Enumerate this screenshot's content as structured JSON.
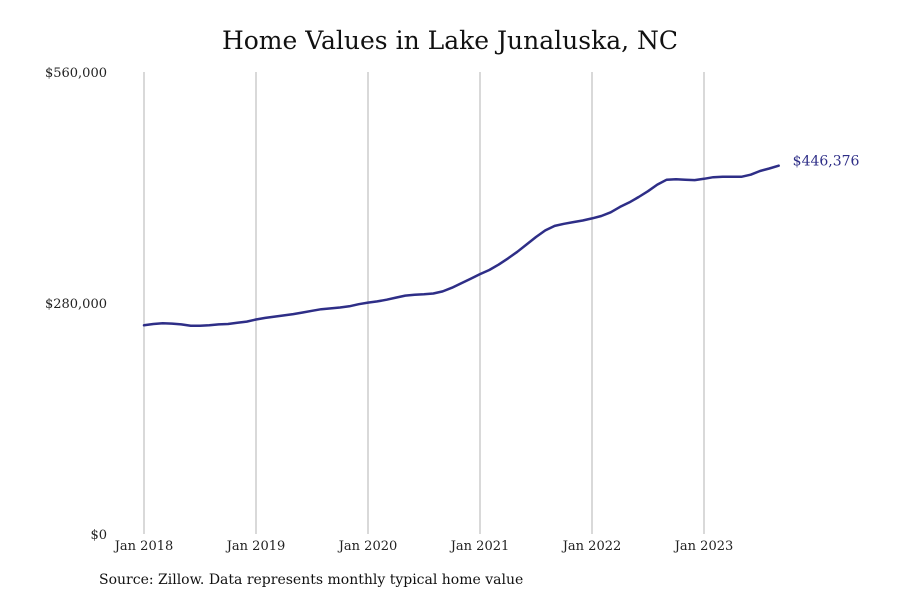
{
  "title": "Home Values in Lake Junaluska, NC",
  "source": "Source: Zillow. Data represents monthly typical home value",
  "colors": {
    "line": "#2e2e87",
    "grid": "#b3b3b3"
  },
  "chart_data": {
    "type": "line",
    "title": "Home Values in Lake Junaluska, NC",
    "xlabel": "",
    "ylabel": "",
    "ylim": [
      0,
      560000
    ],
    "y_ticks": [
      {
        "value": 0,
        "label": "$0"
      },
      {
        "value": 280000,
        "label": "$280,000"
      },
      {
        "value": 560000,
        "label": "$560,000"
      }
    ],
    "x_ticks": [
      {
        "value": "2018-01",
        "label": "Jan 2018"
      },
      {
        "value": "2019-01",
        "label": "Jan 2019"
      },
      {
        "value": "2020-01",
        "label": "Jan 2020"
      },
      {
        "value": "2021-01",
        "label": "Jan 2021"
      },
      {
        "value": "2022-01",
        "label": "Jan 2022"
      },
      {
        "value": "2023-01",
        "label": "Jan 2023"
      }
    ],
    "x_range": [
      "2018-01",
      "2023-09"
    ],
    "grid": {
      "vertical": true,
      "horizontal": false
    },
    "end_label": "$446,376",
    "series": [
      {
        "name": "",
        "x": [
          "2018-01",
          "2018-02",
          "2018-03",
          "2018-04",
          "2018-05",
          "2018-06",
          "2018-07",
          "2018-08",
          "2018-09",
          "2018-10",
          "2018-11",
          "2018-12",
          "2019-01",
          "2019-02",
          "2019-03",
          "2019-04",
          "2019-05",
          "2019-06",
          "2019-07",
          "2019-08",
          "2019-09",
          "2019-10",
          "2019-11",
          "2019-12",
          "2020-01",
          "2020-02",
          "2020-03",
          "2020-04",
          "2020-05",
          "2020-06",
          "2020-07",
          "2020-08",
          "2020-09",
          "2020-10",
          "2020-11",
          "2020-12",
          "2021-01",
          "2021-02",
          "2021-03",
          "2021-04",
          "2021-05",
          "2021-06",
          "2021-07",
          "2021-08",
          "2021-09",
          "2021-10",
          "2021-11",
          "2021-12",
          "2022-01",
          "2022-02",
          "2022-03",
          "2022-04",
          "2022-05",
          "2022-06",
          "2022-07",
          "2022-08",
          "2022-09",
          "2022-10",
          "2022-11",
          "2022-12",
          "2023-01",
          "2023-02",
          "2023-03",
          "2023-04",
          "2023-05",
          "2023-06",
          "2023-07",
          "2023-08",
          "2023-09"
        ],
        "values": [
          253000,
          254500,
          255500,
          255000,
          254000,
          252500,
          252500,
          253000,
          254000,
          254500,
          256000,
          257500,
          260000,
          262000,
          263500,
          265000,
          266500,
          268500,
          270500,
          272500,
          273500,
          274500,
          276000,
          278500,
          280500,
          282000,
          284000,
          286500,
          289000,
          290000,
          290500,
          291500,
          294000,
          298500,
          304000,
          309500,
          315000,
          320000,
          326500,
          334000,
          342000,
          351000,
          360000,
          368000,
          373500,
          376000,
          378000,
          380000,
          382500,
          385500,
          390000,
          396500,
          402000,
          408500,
          415500,
          423500,
          429500,
          430000,
          429500,
          429000,
          430500,
          432500,
          433000,
          433000,
          433000,
          435500,
          440000,
          443000,
          446376
        ]
      }
    ]
  }
}
